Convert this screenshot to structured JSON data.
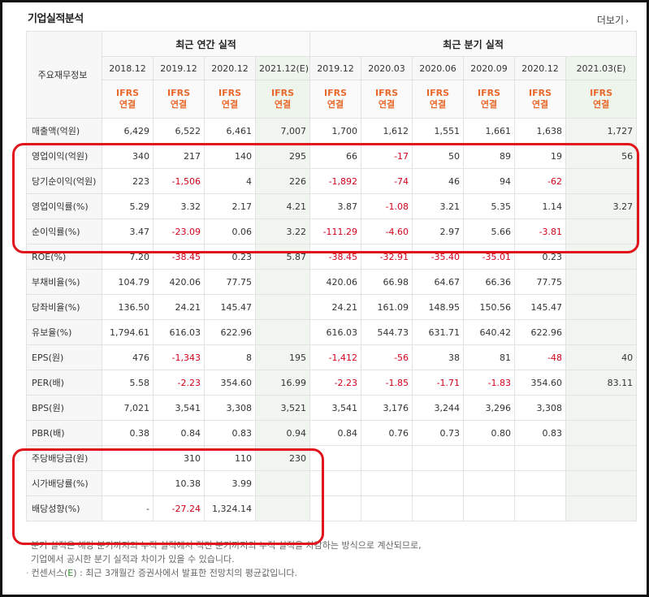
{
  "title": "기업실적분석",
  "more_label": "더보기",
  "header": {
    "corner_label": "주요재무정보",
    "group_annual": "최근 연간 실적",
    "group_quarter": "최근 분기 실적",
    "annual_dates": [
      "2018.12",
      "2019.12",
      "2020.12",
      "2021.12(E)"
    ],
    "quarter_dates": [
      "2019.12",
      "2020.03",
      "2020.06",
      "2020.09",
      "2020.12",
      "2021.03(E)"
    ],
    "ifrs_top": "IFRS",
    "ifrs_bottom": "연결"
  },
  "rows": [
    {
      "label": "매출액(억원)",
      "values": [
        "6,429",
        "6,522",
        "6,461",
        "7,007",
        "1,700",
        "1,612",
        "1,551",
        "1,661",
        "1,638",
        "1,727"
      ]
    },
    {
      "label": "영업이익(억원)",
      "values": [
        "340",
        "217",
        "140",
        "295",
        "66",
        "-17",
        "50",
        "89",
        "19",
        "56"
      ]
    },
    {
      "label": "당기순이익(억원)",
      "values": [
        "223",
        "-1,506",
        "4",
        "226",
        "-1,892",
        "-74",
        "46",
        "94",
        "-62",
        ""
      ]
    },
    {
      "label": "영업이익률(%)",
      "values": [
        "5.29",
        "3.32",
        "2.17",
        "4.21",
        "3.87",
        "-1.08",
        "3.21",
        "5.35",
        "1.14",
        "3.27"
      ]
    },
    {
      "label": "순이익률(%)",
      "values": [
        "3.47",
        "-23.09",
        "0.06",
        "3.22",
        "-111.29",
        "-4.60",
        "2.97",
        "5.66",
        "-3.81",
        ""
      ]
    },
    {
      "label": "ROE(%)",
      "values": [
        "7.20",
        "-38.45",
        "0.23",
        "5.87",
        "-38.45",
        "-32.91",
        "-35.40",
        "-35.01",
        "0.23",
        ""
      ]
    },
    {
      "label": "부채비율(%)",
      "values": [
        "104.79",
        "420.06",
        "77.75",
        "",
        "420.06",
        "66.98",
        "64.67",
        "66.36",
        "77.75",
        ""
      ]
    },
    {
      "label": "당좌비율(%)",
      "values": [
        "136.50",
        "24.21",
        "145.47",
        "",
        "24.21",
        "161.09",
        "148.95",
        "150.56",
        "145.47",
        ""
      ]
    },
    {
      "label": "유보율(%)",
      "values": [
        "1,794.61",
        "616.03",
        "622.96",
        "",
        "616.03",
        "544.73",
        "631.71",
        "640.42",
        "622.96",
        ""
      ]
    },
    {
      "label": "EPS(원)",
      "values": [
        "476",
        "-1,343",
        "8",
        "195",
        "-1,412",
        "-56",
        "38",
        "81",
        "-48",
        "40"
      ]
    },
    {
      "label": "PER(배)",
      "values": [
        "5.58",
        "-2.23",
        "354.60",
        "16.99",
        "-2.23",
        "-1.85",
        "-1.71",
        "-1.83",
        "354.60",
        "83.11"
      ]
    },
    {
      "label": "BPS(원)",
      "values": [
        "7,021",
        "3,541",
        "3,308",
        "3,521",
        "3,541",
        "3,176",
        "3,244",
        "3,296",
        "3,308",
        ""
      ]
    },
    {
      "label": "PBR(배)",
      "values": [
        "0.38",
        "0.84",
        "0.83",
        "0.94",
        "0.84",
        "0.76",
        "0.73",
        "0.80",
        "0.83",
        ""
      ]
    },
    {
      "label": "주당배당금(원)",
      "values": [
        "",
        "310",
        "110",
        "230",
        "",
        "",
        "",
        "",
        "",
        ""
      ]
    },
    {
      "label": "시가배당률(%)",
      "values": [
        "",
        "10.38",
        "3.99",
        "",
        "",
        "",
        "",
        "",
        "",
        ""
      ]
    },
    {
      "label": "배당성향(%)",
      "values": [
        "-",
        "-27.24",
        "1,324.14",
        "",
        "",
        "",
        "",
        "",
        "",
        ""
      ]
    }
  ],
  "notes": {
    "line1": "분기 실적은 해당 분기까지의 누적 실적에서 직전 분기까지의 누적 실적을 차감하는 방식으로 계산되므로,",
    "line2": "기업에서 공시한 분기 실적과 차이가 있을 수 있습니다.",
    "line3_prefix": "컨센서스(",
    "line3_e": "E",
    "line3_suffix": ") : 최근 3개월간 증권사에서 발표한 전망치의 평균값입니다."
  },
  "colors": {
    "negative": "#d0021b",
    "ifrs": "#e8692b",
    "highlight": "#e1141c",
    "estimate_bg": "#f0f6ef"
  }
}
